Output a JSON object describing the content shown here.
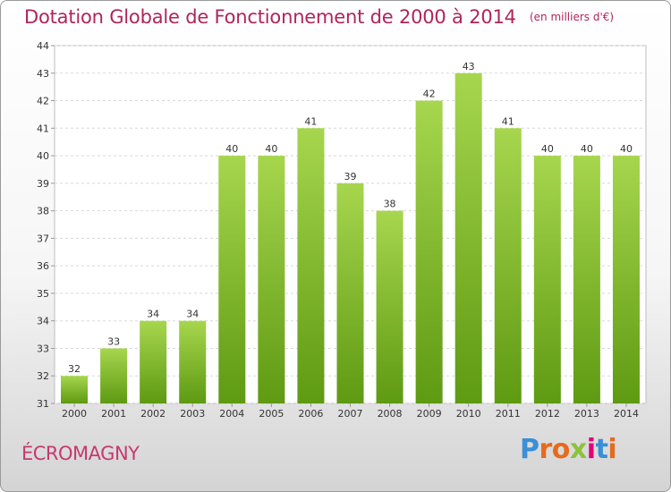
{
  "chart_data": {
    "type": "bar",
    "title": "Dotation Globale de Fonctionnement de 2000 à 2014",
    "subtitle": "(en milliers d'€)",
    "xlabel": "",
    "ylabel": "",
    "categories": [
      "2000",
      "2001",
      "2002",
      "2003",
      "2004",
      "2005",
      "2006",
      "2007",
      "2008",
      "2009",
      "2010",
      "2011",
      "2012",
      "2013",
      "2014"
    ],
    "values": [
      32,
      33,
      34,
      34,
      40,
      40,
      41,
      39,
      38,
      42,
      43,
      41,
      40,
      40,
      40
    ],
    "ylim": [
      31,
      44
    ],
    "yticks": [
      "31",
      "32",
      "33",
      "34",
      "35",
      "36",
      "37",
      "38",
      "39",
      "40",
      "41",
      "42",
      "43",
      "44"
    ],
    "grid": true,
    "legend": "none",
    "colors": {
      "bar_light": "#a6d64e",
      "bar_dark": "#5e9a12",
      "grid": "#d8d8d8",
      "title": "#b0245c"
    }
  },
  "footer": {
    "commune": "ÉCROMAGNY",
    "brand": "Proxiti",
    "brand_colors": [
      "#3a8fd8",
      "#e56b1f",
      "#e56b1f",
      "#8bc33a",
      "#e2007a",
      "#3a8fd8",
      "#e56b1f"
    ]
  }
}
